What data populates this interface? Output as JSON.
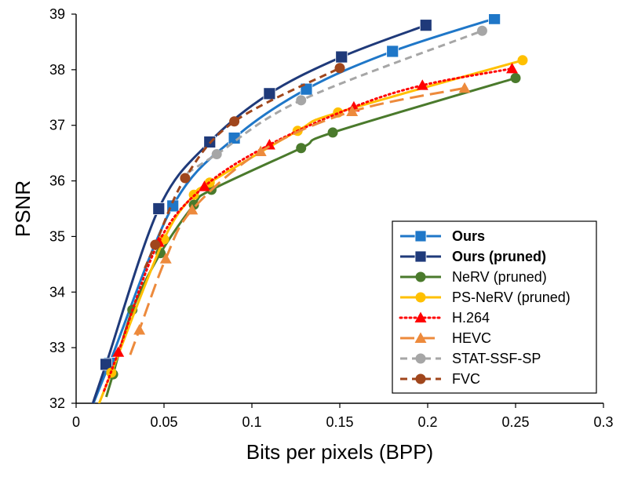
{
  "chart_data": {
    "type": "line",
    "xlabel": "Bits per pixels (BPP)",
    "ylabel": "PSNR",
    "xlim": [
      0,
      0.3
    ],
    "ylim": [
      32,
      39
    ],
    "xticks": [
      "0",
      "0.05",
      "0.1",
      "0.15",
      "0.2",
      "0.25",
      "0.3"
    ],
    "yticks": [
      "32",
      "33",
      "34",
      "35",
      "36",
      "37",
      "38",
      "39"
    ],
    "grid": false,
    "legend_position": "bottom-right",
    "series": [
      {
        "name": "Ours",
        "color": "#1f77c8",
        "marker": "square",
        "dash": "solid",
        "bold": true,
        "x": [
          0.019,
          0.055,
          0.09,
          0.131,
          0.18,
          0.238
        ],
        "y": [
          32.72,
          35.55,
          36.77,
          37.65,
          38.33,
          38.92
        ]
      },
      {
        "name": "Ours (pruned)",
        "color": "#1f3a7a",
        "marker": "square",
        "dash": "solid",
        "bold": true,
        "x": [
          0.017,
          0.047,
          0.076,
          0.11,
          0.151,
          0.199
        ],
        "y": [
          32.7,
          35.5,
          36.7,
          37.57,
          38.23,
          38.8
        ]
      },
      {
        "name": "NeRV (pruned)",
        "color": "#4a7a2c",
        "marker": "circle",
        "dash": "solid",
        "bold": false,
        "x": [
          0.021,
          0.032,
          0.048,
          0.067,
          0.077,
          0.128,
          0.146,
          0.25
        ],
        "y": [
          32.52,
          33.68,
          34.7,
          35.57,
          35.84,
          36.59,
          36.87,
          37.85
        ]
      },
      {
        "name": "PS-NeRV (pruned)",
        "color": "#ffc000",
        "marker": "circle",
        "dash": "solid",
        "bold": false,
        "x": [
          0.02,
          0.05,
          0.067,
          0.076,
          0.126,
          0.149,
          0.254
        ],
        "y": [
          32.55,
          34.95,
          35.75,
          35.97,
          36.9,
          37.23,
          38.17
        ]
      },
      {
        "name": "H.264",
        "color": "#ff0000",
        "marker": "triangle",
        "dash": "dotted",
        "bold": false,
        "x": [
          0.024,
          0.047,
          0.073,
          0.11,
          0.158,
          0.197,
          0.248
        ],
        "y": [
          32.92,
          34.9,
          35.9,
          36.65,
          37.33,
          37.72,
          38.02
        ]
      },
      {
        "name": "HEVC",
        "color": "#ed8a3c",
        "marker": "triangle",
        "dash": "longdash",
        "bold": false,
        "x": [
          0.036,
          0.051,
          0.066,
          0.105,
          0.157,
          0.221
        ],
        "y": [
          33.32,
          34.6,
          35.48,
          36.53,
          37.25,
          37.67
        ]
      },
      {
        "name": "STAT-SSF-SP",
        "color": "#a6a6a6",
        "marker": "circle",
        "dash": "dash",
        "bold": false,
        "x": [
          0.08,
          0.128,
          0.231
        ],
        "y": [
          36.48,
          37.45,
          38.7
        ]
      },
      {
        "name": "FVC",
        "color": "#a0461c",
        "marker": "circle",
        "dash": "dash",
        "bold": false,
        "x": [
          0.045,
          0.062,
          0.09,
          0.15
        ],
        "y": [
          34.85,
          36.05,
          37.07,
          38.03
        ]
      }
    ]
  }
}
